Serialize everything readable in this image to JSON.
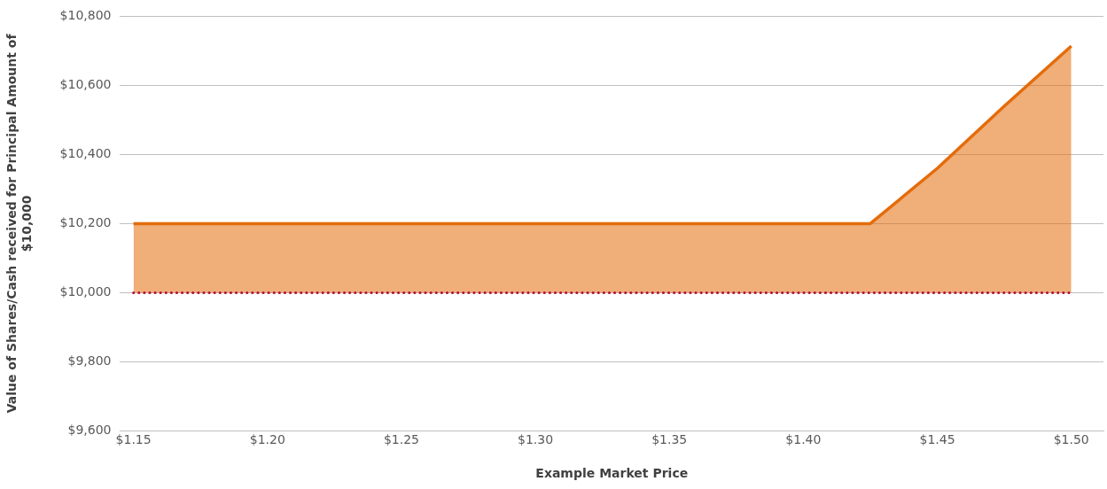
{
  "chart_data": {
    "type": "area",
    "xlabel": "Example Market Price",
    "ylabel": "Value of Shares/Cash received for Principal Amount of $10,000",
    "x": [
      1.15,
      1.2,
      1.25,
      1.3,
      1.35,
      1.4,
      1.425,
      1.45,
      1.475,
      1.5
    ],
    "series": [
      {
        "color": "#e46c0a",
        "values": [
          10200,
          10200,
          10200,
          10200,
          10200,
          10200,
          10200,
          10360,
          10540,
          10714
        ]
      }
    ],
    "xlim": [
      1.145,
      1.512
    ],
    "xticks": [
      {
        "value": 1.15,
        "label": "$1.15"
      },
      {
        "value": 1.2,
        "label": "$1.20"
      },
      {
        "value": 1.25,
        "label": "$1.25"
      },
      {
        "value": 1.3,
        "label": "$1.30"
      },
      {
        "value": 1.35,
        "label": "$1.35"
      },
      {
        "value": 1.4,
        "label": "$1.40"
      },
      {
        "value": 1.45,
        "label": "$1.45"
      },
      {
        "value": 1.5,
        "label": "$1.50"
      }
    ],
    "ylim": [
      9600,
      10800
    ],
    "yticks": [
      {
        "value": 9600,
        "label": "$9,600"
      },
      {
        "value": 9800,
        "label": "$9,800"
      },
      {
        "value": 10000,
        "label": "$10,000"
      },
      {
        "value": 10200,
        "label": "$10,200"
      },
      {
        "value": 10400,
        "label": "$10,400"
      },
      {
        "value": 10600,
        "label": "$10,600"
      },
      {
        "value": 10800,
        "label": "$10,800"
      }
    ],
    "ref_lines": [
      {
        "axis": "y",
        "value": 10000,
        "color": "#b0103a",
        "line_style": "dotted"
      }
    ],
    "grid": "y",
    "legend": false,
    "marker": "none",
    "line_style": "solid"
  }
}
